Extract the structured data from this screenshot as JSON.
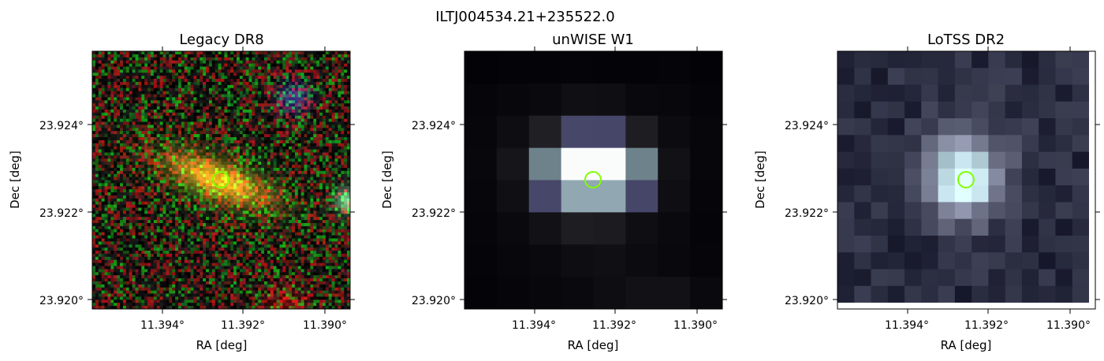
{
  "figure": {
    "title": "ILTJ004534.21+235522.0",
    "panels": [
      {
        "title": "Legacy DR8",
        "xlabel": "RA [deg]",
        "ylabel": "Dec [deg]",
        "xticks": [
          "11.394°",
          "11.392°",
          "11.390°"
        ],
        "yticks": [
          "23.924°",
          "23.922°",
          "23.920°"
        ]
      },
      {
        "title": "unWISE W1",
        "xlabel": "RA [deg]",
        "ylabel": "Dec [deg]",
        "xticks": [
          "11.394°",
          "11.392°",
          "11.390°"
        ],
        "yticks": [
          "23.924°",
          "23.922°",
          "23.920°"
        ]
      },
      {
        "title": "LoTSS DR2",
        "xlabel": "RA [deg]",
        "ylabel": "Dec [deg]",
        "xticks": [
          "11.394°",
          "11.392°",
          "11.390°"
        ],
        "yticks": [
          "23.924°",
          "23.922°",
          "23.920°"
        ]
      }
    ],
    "marker_color": "#7fff00"
  }
}
